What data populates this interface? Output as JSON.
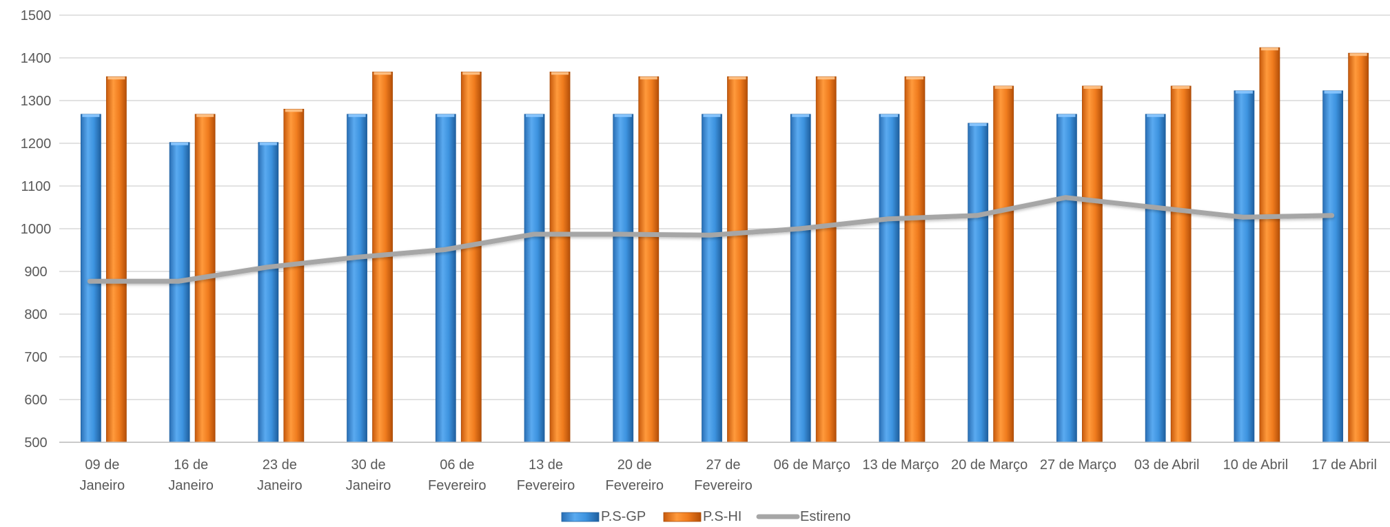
{
  "chart_data": {
    "type": "bar",
    "categories": [
      [
        "09 de",
        "Janeiro"
      ],
      [
        "16 de",
        "Janeiro"
      ],
      [
        "23 de",
        "Janeiro"
      ],
      [
        "30 de",
        "Janeiro"
      ],
      [
        "06 de",
        "Fevereiro"
      ],
      [
        "13 de",
        "Fevereiro"
      ],
      [
        "20 de",
        "Fevereiro"
      ],
      [
        "27 de",
        "Fevereiro"
      ],
      [
        "06 de Março"
      ],
      [
        "13 de Março"
      ],
      [
        "20 de Março"
      ],
      [
        "27 de Março"
      ],
      [
        "03 de Abril"
      ],
      [
        "10 de Abril"
      ],
      [
        "17 de Abril"
      ]
    ],
    "series": [
      {
        "name": "P.S-GP",
        "type": "bar",
        "color": "#3a8fd9",
        "values": [
          1268,
          1202,
          1202,
          1268,
          1268,
          1268,
          1268,
          1268,
          1268,
          1268,
          1247,
          1268,
          1268,
          1323,
          1323
        ]
      },
      {
        "name": "P.S-HI",
        "type": "bar",
        "color": "#f07c1e",
        "values": [
          1356,
          1268,
          1280,
          1367,
          1367,
          1367,
          1356,
          1356,
          1356,
          1356,
          1334,
          1334,
          1334,
          1424,
          1411
        ]
      },
      {
        "name": "Estireno",
        "type": "line",
        "color": "#a6a6a6",
        "values": [
          877,
          877,
          910,
          933,
          951,
          987,
          987,
          985,
          1000,
          1023,
          1031,
          1073,
          1050,
          1027,
          1031
        ]
      }
    ],
    "ylim": [
      500,
      1500
    ],
    "yticks": [
      500,
      600,
      700,
      800,
      900,
      1000,
      1100,
      1200,
      1300,
      1400,
      1500
    ],
    "grid": true,
    "legend": "bottom-center",
    "title": "",
    "xlabel": "",
    "ylabel": ""
  }
}
